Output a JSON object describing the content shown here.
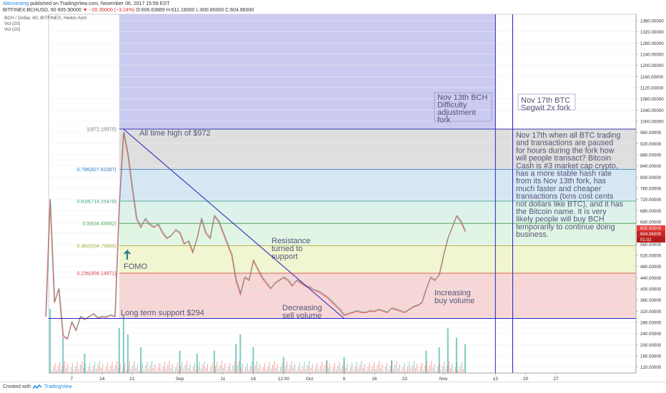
{
  "header": {
    "author": "AltInvesting",
    "published": "published on TradingView.com, November 06, 2017 15:59 EST",
    "symbol": "BITFINEX:BCHUSD, 60",
    "last": "605.90000",
    "change": "▼ −20.30000 (−3.24%)",
    "ohlc": "O:606.63889 H:611.18000 L:600.85000 C:604.96000"
  },
  "legend": {
    "title": "BCH / Dollar, 60, BITFINEX, Heikin Ashi",
    "vol1": "Vol (20)",
    "vol2": "Vol (20)"
  },
  "footer": {
    "created": "Created with",
    "brand": "TradingView"
  },
  "colors": {
    "up": "#26a69a",
    "down": "#ef5350",
    "line": "#2020c0",
    "fib_top": "#d8d8d8",
    "fib_786": "#cfe3f2",
    "fib_618": "#d7f0e8",
    "fib_5": "#dcf3df",
    "fib_382": "#eef3c8",
    "fib_236": "#f5cfcf",
    "purple": "#c8c8f0",
    "price_badge": "#e53935"
  },
  "chart_data": {
    "type": "candlestick",
    "title": "BCH / Dollar, 60, BITFINEX, Heikin Ashi",
    "ylabel": "USD",
    "ylim": [
      110,
      1380
    ],
    "y_ticks": [
      1360,
      1320,
      1280,
      1240,
      1200,
      1160,
      1120,
      1080,
      1040,
      1000,
      960,
      920,
      880,
      840,
      800,
      760,
      720,
      680,
      640,
      600,
      560,
      520,
      480,
      440,
      400,
      360,
      320,
      280,
      240,
      200,
      160,
      120
    ],
    "y_tick_labels": [
      "1360.00000",
      "1320.00000",
      "1280.00000",
      "1240.00000",
      "1200.00000",
      "1160.00000",
      "1120.00000",
      "1080.00000",
      "1040.00000",
      "1000.00000",
      "960.00000",
      "920.00000",
      "880.00000",
      "840.00000",
      "800.00000",
      "760.00000",
      "720.00000",
      "680.00000",
      "640.00000",
      "600.00000",
      "560.00000",
      "520.00000",
      "480.00000",
      "440.00000",
      "400.00000",
      "360.00000",
      "320.00000",
      "280.00000",
      "240.00000",
      "200.00000",
      "160.00000",
      "120.00000"
    ],
    "x_start": "2017-08-01",
    "x_end": "2017-12-31",
    "x_ticks": [
      {
        "date": "2017-08-07",
        "label": "7"
      },
      {
        "date": "2017-08-14",
        "label": "14"
      },
      {
        "date": "2017-08-21",
        "label": "21"
      },
      {
        "date": "2017-09-01",
        "label": "Sep"
      },
      {
        "date": "2017-09-11",
        "label": "11"
      },
      {
        "date": "2017-09-18",
        "label": "18"
      },
      {
        "date": "2017-09-25",
        "label": "12:00"
      },
      {
        "date": "2017-10-01",
        "label": "Oct"
      },
      {
        "date": "2017-10-09",
        "label": "9"
      },
      {
        "date": "2017-10-16",
        "label": "16"
      },
      {
        "date": "2017-10-23",
        "label": "23"
      },
      {
        "date": "2017-11-01",
        "label": "Nov"
      },
      {
        "date": "2017-11-13",
        "label": "13"
      },
      {
        "date": "2017-11-20",
        "label": "20"
      },
      {
        "date": "2017-11-27",
        "label": "27"
      }
    ],
    "series_path": [
      [
        "2017-08-01",
        300
      ],
      [
        "2017-08-02",
        720
      ],
      [
        "2017-08-03",
        350
      ],
      [
        "2017-08-04",
        400
      ],
      [
        "2017-08-05",
        230
      ],
      [
        "2017-08-06",
        220
      ],
      [
        "2017-08-07",
        280
      ],
      [
        "2017-08-08",
        250
      ],
      [
        "2017-08-09",
        300
      ],
      [
        "2017-08-10",
        290
      ],
      [
        "2017-08-11",
        300
      ],
      [
        "2017-08-12",
        310
      ],
      [
        "2017-08-13",
        295
      ],
      [
        "2017-08-14",
        300
      ],
      [
        "2017-08-15",
        298
      ],
      [
        "2017-08-16",
        305
      ],
      [
        "2017-08-17",
        300
      ],
      [
        "2017-08-18",
        700
      ],
      [
        "2017-08-19",
        960
      ],
      [
        "2017-08-20",
        880
      ],
      [
        "2017-08-21",
        760
      ],
      [
        "2017-08-22",
        650
      ],
      [
        "2017-08-23",
        620
      ],
      [
        "2017-08-24",
        650
      ],
      [
        "2017-08-25",
        630
      ],
      [
        "2017-08-26",
        620
      ],
      [
        "2017-08-27",
        630
      ],
      [
        "2017-08-28",
        600
      ],
      [
        "2017-08-29",
        580
      ],
      [
        "2017-08-30",
        590
      ],
      [
        "2017-08-31",
        610
      ],
      [
        "2017-09-01",
        600
      ],
      [
        "2017-09-02",
        560
      ],
      [
        "2017-09-03",
        570
      ],
      [
        "2017-09-04",
        530
      ],
      [
        "2017-09-05",
        580
      ],
      [
        "2017-09-06",
        650
      ],
      [
        "2017-09-07",
        600
      ],
      [
        "2017-09-08",
        580
      ],
      [
        "2017-09-09",
        660
      ],
      [
        "2017-09-10",
        640
      ],
      [
        "2017-09-11",
        600
      ],
      [
        "2017-09-12",
        560
      ],
      [
        "2017-09-13",
        520
      ],
      [
        "2017-09-14",
        430
      ],
      [
        "2017-09-15",
        380
      ],
      [
        "2017-09-16",
        440
      ],
      [
        "2017-09-17",
        430
      ],
      [
        "2017-09-18",
        500
      ],
      [
        "2017-09-19",
        470
      ],
      [
        "2017-09-20",
        440
      ],
      [
        "2017-09-21",
        420
      ],
      [
        "2017-09-22",
        400
      ],
      [
        "2017-09-23",
        420
      ],
      [
        "2017-09-24",
        430
      ],
      [
        "2017-09-25",
        440
      ],
      [
        "2017-09-26",
        430
      ],
      [
        "2017-09-27",
        410
      ],
      [
        "2017-09-28",
        430
      ],
      [
        "2017-09-29",
        420
      ],
      [
        "2017-09-30",
        410
      ],
      [
        "2017-10-01",
        405
      ],
      [
        "2017-10-02",
        395
      ],
      [
        "2017-10-03",
        390
      ],
      [
        "2017-10-04",
        380
      ],
      [
        "2017-10-05",
        370
      ],
      [
        "2017-10-06",
        355
      ],
      [
        "2017-10-07",
        340
      ],
      [
        "2017-10-08",
        325
      ],
      [
        "2017-10-09",
        305
      ],
      [
        "2017-10-10",
        310
      ],
      [
        "2017-10-11",
        315
      ],
      [
        "2017-10-12",
        320
      ],
      [
        "2017-10-13",
        315
      ],
      [
        "2017-10-14",
        315
      ],
      [
        "2017-10-15",
        320
      ],
      [
        "2017-10-16",
        318
      ],
      [
        "2017-10-17",
        325
      ],
      [
        "2017-10-18",
        320
      ],
      [
        "2017-10-19",
        315
      ],
      [
        "2017-10-20",
        330
      ],
      [
        "2017-10-21",
        325
      ],
      [
        "2017-10-22",
        320
      ],
      [
        "2017-10-23",
        315
      ],
      [
        "2017-10-24",
        325
      ],
      [
        "2017-10-25",
        335
      ],
      [
        "2017-10-26",
        340
      ],
      [
        "2017-10-27",
        350
      ],
      [
        "2017-10-28",
        400
      ],
      [
        "2017-10-29",
        440
      ],
      [
        "2017-10-30",
        430
      ],
      [
        "2017-10-31",
        450
      ],
      [
        "2017-11-01",
        520
      ],
      [
        "2017-11-02",
        580
      ],
      [
        "2017-11-03",
        620
      ],
      [
        "2017-11-04",
        660
      ],
      [
        "2017-11-05",
        640
      ],
      [
        "2017-11-06",
        605
      ]
    ],
    "volume_max": 100,
    "volume": [
      [
        "2017-08-02",
        100
      ],
      [
        "2017-08-05",
        55
      ],
      [
        "2017-08-10",
        30
      ],
      [
        "2017-08-18",
        70
      ],
      [
        "2017-08-19",
        90
      ],
      [
        "2017-08-20",
        60
      ],
      [
        "2017-08-23",
        40
      ],
      [
        "2017-09-01",
        35
      ],
      [
        "2017-09-05",
        30
      ],
      [
        "2017-09-09",
        35
      ],
      [
        "2017-09-14",
        45
      ],
      [
        "2017-09-15",
        60
      ],
      [
        "2017-09-18",
        40
      ],
      [
        "2017-09-25",
        25
      ],
      [
        "2017-10-05",
        20
      ],
      [
        "2017-10-09",
        25
      ],
      [
        "2017-10-20",
        20
      ],
      [
        "2017-10-28",
        35
      ],
      [
        "2017-10-31",
        40
      ],
      [
        "2017-11-02",
        70
      ],
      [
        "2017-11-04",
        55
      ],
      [
        "2017-11-06",
        45
      ]
    ],
    "fib_levels": [
      {
        "label": "1(972.15970)",
        "value": 972.1597
      },
      {
        "label": "0.786(827.62287)",
        "value": 827.62287
      },
      {
        "label": "0.618(714.15470)",
        "value": 714.1547
      },
      {
        "label": "0.5(634.45682)",
        "value": 634.45682
      },
      {
        "label": "0.382(554.75895)",
        "value": 554.75895
      },
      {
        "label": "0.236(456.14971)",
        "value": 456.14971
      }
    ],
    "fib_base": 296,
    "fib_start_date": "2017-08-18",
    "purple_zone": {
      "from": "2017-08-18",
      "to": "2017-11-13"
    },
    "vertical_lines": [
      "2017-11-13",
      "2017-11-17"
    ],
    "support_level": 294,
    "trendline": [
      [
        "2017-08-19",
        972
      ],
      [
        "2017-10-09",
        294
      ]
    ],
    "current_price_labels": [
      "605.90000",
      "604.96000",
      "01:02"
    ],
    "annotations": [
      {
        "text": "All time high of $972",
        "date": "2017-08-21",
        "value": 950
      },
      {
        "text": "FOMO",
        "date": "2017-08-18",
        "value": 470
      },
      {
        "text": "Long term support $294",
        "date": "2017-08-18",
        "value": 305
      },
      {
        "text": "Resistance turned to support",
        "date": "2017-09-24",
        "value": 540
      },
      {
        "text": "Decreasing sell volume",
        "date": "2017-10-03",
        "value": 335
      },
      {
        "text": "Increasing buy volume",
        "date": "2017-11-01",
        "value": 395
      },
      {
        "text": "Nov 13th BCH Difficulty adjustment fork",
        "date": "2017-11-01",
        "value": 1082
      },
      {
        "text": "Nov 17th BTC Segwit 2x fork",
        "date": "2017-11-18",
        "value": 1085
      },
      {
        "text": "Nov 17th when all BTC trading and transactions are paused for hours during the fork how will people transact? Bitcoin Cash is #3 market cap crypto, has a more stable hash rate from its Nov 13th fork, has much faster and cheaper transactions (txns cost cents not dollars like BTC), and it has the Bitcoin name. It is very likely people will buy BCH temporarily to continue doing business.",
        "date": "2017-11-18",
        "value": 960
      }
    ]
  }
}
